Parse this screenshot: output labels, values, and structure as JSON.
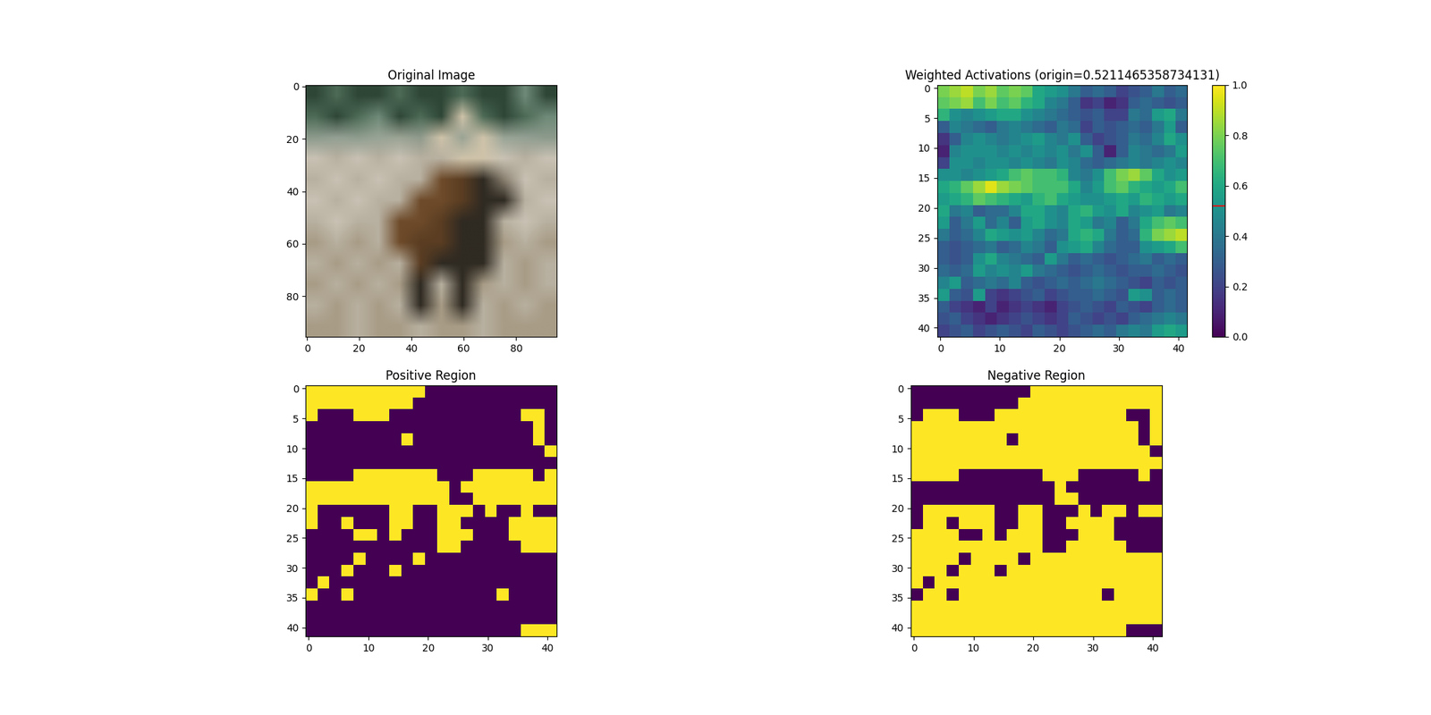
{
  "chart_data": [
    {
      "type": "image",
      "title": "Original Image",
      "xlim": [
        -0.5,
        95.5
      ],
      "ylim": [
        95.5,
        -0.5
      ],
      "xticks": [
        0,
        20,
        40,
        60,
        80
      ],
      "yticks": [
        0,
        20,
        40,
        60,
        80
      ],
      "cells": [
        [
          "#2e4636",
          "#4d6b57",
          "#2e4636",
          "#2e4636",
          "#4d6b57",
          "#2e4636",
          "#2e4636",
          "#4d6b57",
          "#2e4636",
          "#2e4636",
          "#6f8a78",
          "#2e4636"
        ],
        [
          "#4d6b57",
          "#2e4636",
          "#4d6b57",
          "#6f8a78",
          "#2e4636",
          "#4d6b57",
          "#2e4636",
          "#cfc3aa",
          "#4d6b57",
          "#2e4636",
          "#4d6b57",
          "#6f8a78"
        ],
        [
          "#8c9a8c",
          "#93a093",
          "#8e9c8e",
          "#98a496",
          "#9aa394",
          "#8f9a8c",
          "#cfc3aa",
          "#9aa394",
          "#cfc3aa",
          "#98a496",
          "#93a093",
          "#8c9a8c"
        ],
        [
          "#c9c2b4",
          "#b8b0a0",
          "#c9c2b4",
          "#b8b0a0",
          "#c9c2b4",
          "#b8b0a0",
          "#b8b0a0",
          "#cfc3aa",
          "#cfc3aa",
          "#c9c2b4",
          "#b8b0a0",
          "#c9c2b4"
        ],
        [
          "#b8b0a0",
          "#c9c2b4",
          "#b8b0a0",
          "#c9c2b4",
          "#b8b0a0",
          "#b8b0a0",
          "#6e4b2a",
          "#5a3d22",
          "#2f2a22",
          "#8a8070",
          "#c9c2b4",
          "#b8b0a0"
        ],
        [
          "#c9c2b4",
          "#b8b0a0",
          "#c9c2b4",
          "#b8b0a0",
          "#b8b0a0",
          "#6e4b2a",
          "#6e4b2a",
          "#5a3d22",
          "#2f2a22",
          "#2f2a22",
          "#b8b0a0",
          "#c9c2b4"
        ],
        [
          "#b8b0a0",
          "#c9c2b4",
          "#b8b0a0",
          "#b8b0a0",
          "#6e4b2a",
          "#6e4b2a",
          "#5a3d22",
          "#2f2a22",
          "#2f2a22",
          "#b8b0a0",
          "#c9c2b4",
          "#b8b0a0"
        ],
        [
          "#a89c86",
          "#b8b0a0",
          "#a89c86",
          "#b8b0a0",
          "#6e4b2a",
          "#5a3d22",
          "#5a3d22",
          "#2f2a22",
          "#2f2a22",
          "#a89c86",
          "#b8b0a0",
          "#a89c86"
        ],
        [
          "#b8b0a0",
          "#a89c86",
          "#b8b0a0",
          "#a89c86",
          "#b8b0a0",
          "#5a3d22",
          "#2f2a22",
          "#2f2a22",
          "#2f2a22",
          "#b8b0a0",
          "#a89c86",
          "#b8b0a0"
        ],
        [
          "#a89c86",
          "#b8b0a0",
          "#a89c86",
          "#b8b0a0",
          "#a89c86",
          "#2f2a22",
          "#b8b0a0",
          "#2f2a22",
          "#a89c86",
          "#b8b0a0",
          "#a89c86",
          "#b8b0a0"
        ],
        [
          "#b8b0a0",
          "#a89c86",
          "#b8b0a0",
          "#a89c86",
          "#b8b0a0",
          "#2f2a22",
          "#a89c86",
          "#2f2a22",
          "#b8b0a0",
          "#a89c86",
          "#b8b0a0",
          "#a89c86"
        ],
        [
          "#a89c86",
          "#a89c86",
          "#b8b0a0",
          "#a89c86",
          "#a89c86",
          "#b8b0a0",
          "#a89c86",
          "#a89c86",
          "#b8b0a0",
          "#a89c86",
          "#a89c86",
          "#a89c86"
        ]
      ]
    },
    {
      "type": "heatmap",
      "title": "Weighted Activations (origin=0.5211465358734131)",
      "origin": 0.5211465358734131,
      "xlim": [
        -0.5,
        41.5
      ],
      "ylim": [
        41.5,
        -0.5
      ],
      "xticks": [
        0,
        10,
        20,
        30,
        40
      ],
      "yticks": [
        0,
        5,
        10,
        15,
        20,
        25,
        30,
        35,
        40
      ],
      "colorbar": {
        "range": [
          0,
          1
        ],
        "ticks": [
          {
            "value": 0,
            "label": "0.0"
          },
          {
            "value": 0.2,
            "label": "0.2"
          },
          {
            "value": 0.4,
            "label": "0.4"
          },
          {
            "value": 0.6,
            "label": "0.6"
          },
          {
            "value": 0.8,
            "label": "0.8"
          },
          {
            "value": 1,
            "label": "1.0"
          }
        ]
      },
      "cells": [
        [
          0.8,
          0.85,
          0.9,
          0.8,
          0.85,
          0.75,
          0.8,
          0.75,
          0.6,
          0.55,
          0.5,
          0.4,
          0.3,
          0.35,
          0.3,
          0.2,
          0.25,
          0.3,
          0.4,
          0.3,
          0.35
        ],
        [
          0.75,
          0.8,
          0.85,
          0.7,
          0.8,
          0.7,
          0.75,
          0.65,
          0.6,
          0.45,
          0.4,
          0.3,
          0.15,
          0.2,
          0.1,
          0.15,
          0.3,
          0.35,
          0.3,
          0.25,
          0.3
        ],
        [
          0.65,
          0.5,
          0.45,
          0.5,
          0.55,
          0.6,
          0.6,
          0.5,
          0.45,
          0.4,
          0.35,
          0.3,
          0.25,
          0.3,
          0.2,
          0.2,
          0.4,
          0.35,
          0.55,
          0.6,
          0.4
        ],
        [
          0.3,
          0.45,
          0.4,
          0.35,
          0.3,
          0.4,
          0.45,
          0.4,
          0.35,
          0.3,
          0.4,
          0.35,
          0.2,
          0.3,
          0.25,
          0.3,
          0.35,
          0.3,
          0.4,
          0.55,
          0.3
        ],
        [
          0.15,
          0.3,
          0.45,
          0.5,
          0.45,
          0.4,
          0.45,
          0.5,
          0.55,
          0.45,
          0.4,
          0.5,
          0.3,
          0.2,
          0.25,
          0.3,
          0.4,
          0.35,
          0.45,
          0.6,
          0.5
        ],
        [
          0.1,
          0.45,
          0.5,
          0.5,
          0.5,
          0.45,
          0.5,
          0.45,
          0.5,
          0.45,
          0.5,
          0.4,
          0.5,
          0.3,
          0.1,
          0.3,
          0.45,
          0.4,
          0.35,
          0.4,
          0.55
        ],
        [
          0.2,
          0.5,
          0.5,
          0.45,
          0.5,
          0.5,
          0.45,
          0.5,
          0.45,
          0.4,
          0.5,
          0.45,
          0.35,
          0.3,
          0.35,
          0.4,
          0.45,
          0.4,
          0.45,
          0.5,
          0.45
        ],
        [
          0.5,
          0.5,
          0.45,
          0.5,
          0.55,
          0.6,
          0.7,
          0.75,
          0.7,
          0.7,
          0.65,
          0.45,
          0.4,
          0.5,
          0.7,
          0.8,
          0.85,
          0.75,
          0.6,
          0.5,
          0.55
        ],
        [
          0.6,
          0.65,
          0.75,
          0.85,
          0.95,
          0.85,
          0.8,
          0.75,
          0.7,
          0.7,
          0.7,
          0.6,
          0.45,
          0.55,
          0.7,
          0.75,
          0.65,
          0.6,
          0.55,
          0.6,
          0.7
        ],
        [
          0.55,
          0.6,
          0.65,
          0.75,
          0.7,
          0.65,
          0.6,
          0.55,
          0.65,
          0.7,
          0.6,
          0.55,
          0.5,
          0.5,
          0.55,
          0.6,
          0.55,
          0.65,
          0.6,
          0.55,
          0.6
        ],
        [
          0.6,
          0.4,
          0.45,
          0.3,
          0.35,
          0.35,
          0.45,
          0.6,
          0.6,
          0.5,
          0.45,
          0.6,
          0.65,
          0.55,
          0.5,
          0.6,
          0.45,
          0.5,
          0.55,
          0.4,
          0.45
        ],
        [
          0.55,
          0.3,
          0.4,
          0.55,
          0.35,
          0.45,
          0.3,
          0.55,
          0.6,
          0.5,
          0.45,
          0.6,
          0.55,
          0.4,
          0.45,
          0.3,
          0.4,
          0.6,
          0.7,
          0.75,
          0.7
        ],
        [
          0.4,
          0.3,
          0.35,
          0.45,
          0.6,
          0.55,
          0.5,
          0.55,
          0.45,
          0.35,
          0.4,
          0.6,
          0.65,
          0.6,
          0.4,
          0.3,
          0.35,
          0.65,
          0.8,
          0.85,
          0.9
        ],
        [
          0.3,
          0.25,
          0.3,
          0.35,
          0.4,
          0.3,
          0.35,
          0.45,
          0.4,
          0.3,
          0.5,
          0.55,
          0.6,
          0.45,
          0.35,
          0.3,
          0.3,
          0.5,
          0.55,
          0.6,
          0.7
        ],
        [
          0.3,
          0.25,
          0.3,
          0.5,
          0.6,
          0.45,
          0.4,
          0.35,
          0.3,
          0.55,
          0.4,
          0.3,
          0.35,
          0.3,
          0.25,
          0.3,
          0.35,
          0.4,
          0.3,
          0.35,
          0.3
        ],
        [
          0.35,
          0.3,
          0.35,
          0.55,
          0.45,
          0.5,
          0.45,
          0.55,
          0.4,
          0.35,
          0.3,
          0.25,
          0.3,
          0.35,
          0.3,
          0.25,
          0.3,
          0.3,
          0.35,
          0.3,
          0.25
        ],
        [
          0.45,
          0.55,
          0.3,
          0.35,
          0.4,
          0.35,
          0.45,
          0.3,
          0.25,
          0.3,
          0.35,
          0.3,
          0.35,
          0.4,
          0.35,
          0.3,
          0.25,
          0.2,
          0.3,
          0.25,
          0.3
        ],
        [
          0.55,
          0.3,
          0.25,
          0.55,
          0.2,
          0.15,
          0.2,
          0.25,
          0.3,
          0.2,
          0.25,
          0.3,
          0.3,
          0.35,
          0.3,
          0.25,
          0.55,
          0.5,
          0.3,
          0.35,
          0.3
        ],
        [
          0.3,
          0.2,
          0.15,
          0.1,
          0.2,
          0.1,
          0.15,
          0.2,
          0.15,
          0.1,
          0.2,
          0.25,
          0.3,
          0.25,
          0.2,
          0.3,
          0.25,
          0.2,
          0.3,
          0.35,
          0.3
        ],
        [
          0.25,
          0.3,
          0.2,
          0.15,
          0.1,
          0.15,
          0.2,
          0.25,
          0.2,
          0.15,
          0.2,
          0.3,
          0.25,
          0.2,
          0.25,
          0.2,
          0.3,
          0.35,
          0.4,
          0.45,
          0.4
        ],
        [
          0.2,
          0.25,
          0.3,
          0.2,
          0.25,
          0.3,
          0.25,
          0.2,
          0.3,
          0.25,
          0.2,
          0.25,
          0.3,
          0.35,
          0.3,
          0.4,
          0.45,
          0.4,
          0.55,
          0.6,
          0.55
        ]
      ]
    },
    {
      "type": "positive_mask",
      "title": "Positive Region",
      "xlim": [
        -0.5,
        41.5
      ],
      "ylim": [
        41.5,
        -0.5
      ],
      "xticks": [
        0,
        10,
        20,
        30,
        40
      ],
      "yticks": [
        0,
        5,
        10,
        15,
        20,
        25,
        30,
        35,
        40
      ]
    },
    {
      "type": "negative_mask",
      "title": "Negative Region",
      "xlim": [
        -0.5,
        41.5
      ],
      "ylim": [
        41.5,
        -0.5
      ],
      "xticks": [
        0,
        10,
        20,
        30,
        40
      ],
      "yticks": [
        0,
        5,
        10,
        15,
        20,
        25,
        30,
        35,
        40
      ]
    }
  ]
}
